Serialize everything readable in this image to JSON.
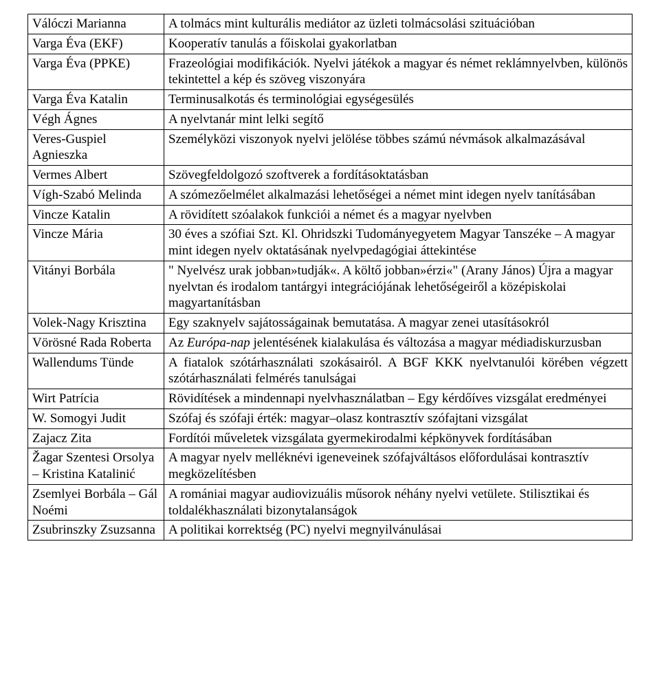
{
  "rows": [
    {
      "name": "Válóczi Marianna",
      "desc": "A tolmács mint kulturális mediátor az üzleti tolmácsolási szituációban",
      "justify": false
    },
    {
      "name": "Varga Éva (EKF)",
      "desc": "Kooperatív tanulás a főiskolai gyakorlatban",
      "justify": false
    },
    {
      "name": "Varga Éva (PPKE)",
      "desc": "Frazeológiai modifikációk. Nyelvi játékok a magyar és német reklámnyelvben, különös tekintettel a kép és szöveg viszonyára",
      "justify": true
    },
    {
      "name": "Varga Éva Katalin",
      "desc": "Terminusalkotás és terminológiai egységesülés",
      "justify": false
    },
    {
      "name": "Végh Ágnes",
      "desc": "A nyelvtanár mint lelki segítő",
      "justify": false
    },
    {
      "name": "Veres-Guspiel Agnieszka",
      "desc": "Személyközi viszonyok nyelvi jelölése többes számú névmások alkalmazásával",
      "justify": false
    },
    {
      "name": "Vermes Albert",
      "desc": "Szövegfeldolgozó szoftverek a fordításoktatásban",
      "justify": false
    },
    {
      "name": "Vígh-Szabó Melinda",
      "desc": "A szómezőelmélet alkalmazási lehetőségei a német mint idegen nyelv tanításában",
      "justify": false
    },
    {
      "name": "Vincze Katalin",
      "desc": "A rövidített szóalakok funkciói a német és a magyar nyelvben",
      "justify": false
    },
    {
      "name": "Vincze Mária",
      "desc": "30 éves a szófiai Szt. Kl. Ohridszki Tudományegyetem Magyar Tanszéke – A magyar mint idegen nyelv oktatásának nyelvpedagógiai áttekintése",
      "justify": false
    },
    {
      "name": "Vitányi Borbála",
      "desc": "\" Nyelvész urak jobban»tudják«. A költő jobban»érzi«\" (Arany János) Újra a magyar nyelvtan és irodalom tantárgyi integrációjának lehetőségeiről a középiskolai magyartanításban",
      "justify": false
    },
    {
      "name": "Volek-Nagy Krisztina",
      "desc": "Egy szaknyelv sajátosságainak bemutatása. A magyar zenei utasításokról",
      "justify": false
    },
    {
      "name": "Vörösné Rada Roberta",
      "desc_html": "Az <i>Európa-nap</i> jelentésének kialakulása és változása a magyar médiadiskurzusban",
      "justify": false
    },
    {
      "name": "Wallendums Tünde",
      "desc": "A fiatalok szótárhasználati szokásairól. A BGF KKK nyelvtanulói körében végzett szótárhasználati felmérés tanulságai",
      "justify": true
    },
    {
      "name": "Wirt Patrícia",
      "desc": "Rövidítések a mindennapi nyelvhasználatban – Egy kérdőíves vizsgálat eredményei",
      "justify": false
    },
    {
      "name": "W. Somogyi Judit",
      "desc": "Szófaj és szófaji érték: magyar–olasz kontrasztív szófajtani vizsgálat",
      "justify": false
    },
    {
      "name": "Zajacz Zita",
      "desc": "Fordítói műveletek vizsgálata gyermekirodalmi képkönyvek fordításában",
      "justify": false
    },
    {
      "name": "Žagar Szentesi Orsolya – Kristina Katalinić",
      "desc": "A magyar nyelv melléknévi igeneveinek szófajváltásos előfordulásai kontrasztív megközelítésben",
      "justify": false
    },
    {
      "name": "Zsemlyei Borbála – Gál Noémi",
      "desc": "A romániai magyar audiovizuális műsorok néhány nyelvi vetülete. Stilisztikai és toldalékhasználati bizonytalanságok",
      "justify": false
    },
    {
      "name": "Zsubrinszky Zsuzsanna",
      "desc": "A politikai korrektség (PC) nyelvi megnyilvánulásai",
      "justify": false
    }
  ]
}
